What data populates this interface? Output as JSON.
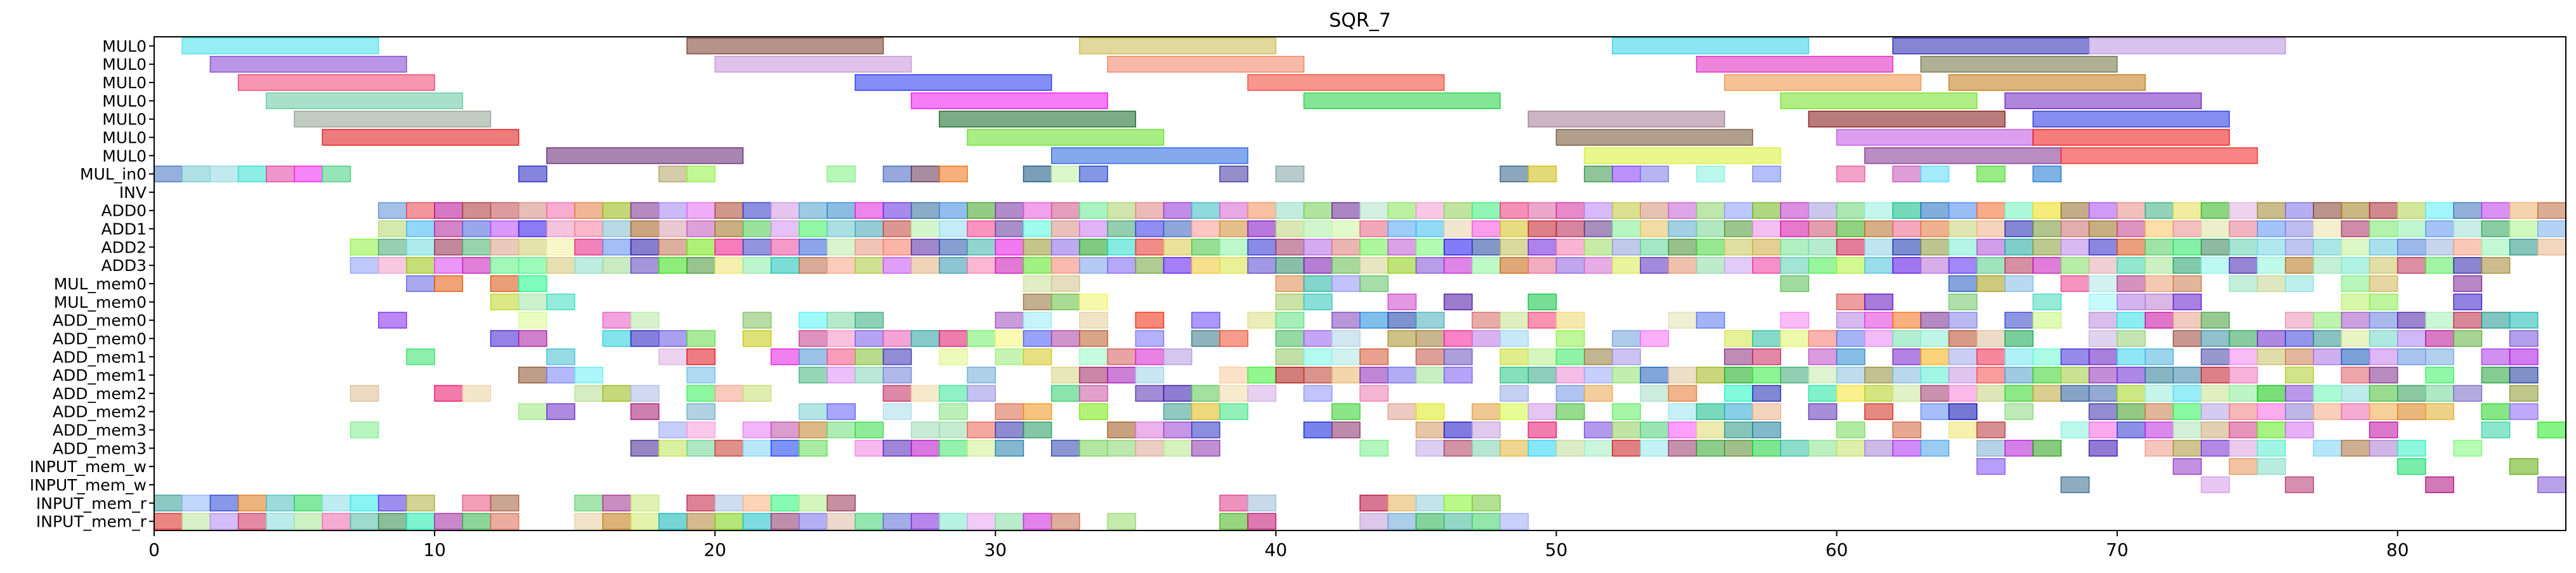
{
  "chart_data": {
    "type": "gantt",
    "title": "SQR_7",
    "xlabel": "",
    "ylabel": "",
    "xlim": [
      0,
      86
    ],
    "x_ticks": [
      0,
      10,
      20,
      30,
      40,
      50,
      60,
      70,
      80
    ],
    "grid": false,
    "rows": [
      "MUL0",
      "MUL0",
      "MUL0",
      "MUL0",
      "MUL0",
      "MUL0",
      "MUL0",
      "MUL_in0",
      "INV",
      "ADD0",
      "ADD1",
      "ADD2",
      "ADD3",
      "MUL_mem0",
      "MUL_mem0",
      "ADD_mem0",
      "ADD_mem0",
      "ADD_mem1",
      "ADD_mem1",
      "ADD_mem2",
      "ADD_mem2",
      "ADD_mem3",
      "ADD_mem3",
      "INPUT_mem_w",
      "INPUT_mem_w",
      "INPUT_mem_r",
      "INPUT_mem_r"
    ],
    "seed": 7,
    "bars": [
      {
        "row": 0,
        "start": 1,
        "end": 8,
        "color": "#40e0e8"
      },
      {
        "row": 0,
        "start": 19,
        "end": 26,
        "color": "#7a3a2a"
      },
      {
        "row": 0,
        "start": 33,
        "end": 40,
        "color": "#c8b848"
      },
      {
        "row": 0,
        "start": 52,
        "end": 59,
        "color": "#30d0e8"
      },
      {
        "row": 0,
        "start": 62,
        "end": 69,
        "color": "#2020b0"
      },
      {
        "row": 0,
        "start": 69,
        "end": 76,
        "color": "#b890e0"
      },
      {
        "row": 1,
        "start": 2,
        "end": 9,
        "color": "#8040d0"
      },
      {
        "row": 1,
        "start": 20,
        "end": 27,
        "color": "#c890d8"
      },
      {
        "row": 1,
        "start": 34,
        "end": 41,
        "color": "#f08060"
      },
      {
        "row": 1,
        "start": 55,
        "end": 62,
        "color": "#e020c0"
      },
      {
        "row": 1,
        "start": 63,
        "end": 70,
        "color": "#707040"
      },
      {
        "row": 2,
        "start": 3,
        "end": 10,
        "color": "#f04070"
      },
      {
        "row": 2,
        "start": 25,
        "end": 32,
        "color": "#2030f0"
      },
      {
        "row": 2,
        "start": 39,
        "end": 46,
        "color": "#f04030"
      },
      {
        "row": 2,
        "start": 56,
        "end": 63,
        "color": "#f09040"
      },
      {
        "row": 2,
        "start": 64,
        "end": 71,
        "color": "#c07810"
      },
      {
        "row": 3,
        "start": 4,
        "end": 11,
        "color": "#60c8a0"
      },
      {
        "row": 3,
        "start": 27,
        "end": 34,
        "color": "#f010f0"
      },
      {
        "row": 3,
        "start": 41,
        "end": 48,
        "color": "#20d040"
      },
      {
        "row": 3,
        "start": 58,
        "end": 65,
        "color": "#70e020"
      },
      {
        "row": 3,
        "start": 66,
        "end": 73,
        "color": "#7020c0"
      },
      {
        "row": 4,
        "start": 5,
        "end": 12,
        "color": "#90a090"
      },
      {
        "row": 4,
        "start": 28,
        "end": 35,
        "color": "#106820"
      },
      {
        "row": 4,
        "start": 49,
        "end": 56,
        "color": "#a07890"
      },
      {
        "row": 4,
        "start": 59,
        "end": 66,
        "color": "#801010"
      },
      {
        "row": 4,
        "start": 67,
        "end": 74,
        "color": "#2030e0"
      },
      {
        "row": 5,
        "start": 6,
        "end": 13,
        "color": "#e01010"
      },
      {
        "row": 5,
        "start": 29,
        "end": 36,
        "color": "#60e020"
      },
      {
        "row": 5,
        "start": 50,
        "end": 57,
        "color": "#705030"
      },
      {
        "row": 5,
        "start": 60,
        "end": 67,
        "color": "#c050e0"
      },
      {
        "row": 5,
        "start": 67,
        "end": 74,
        "color": "#f01010"
      },
      {
        "row": 6,
        "start": 14,
        "end": 21,
        "color": "#602070"
      },
      {
        "row": 6,
        "start": 32,
        "end": 39,
        "color": "#2060e0"
      },
      {
        "row": 6,
        "start": 51,
        "end": 58,
        "color": "#d8f030"
      },
      {
        "row": 6,
        "start": 61,
        "end": 68,
        "color": "#803090"
      },
      {
        "row": 6,
        "start": 68,
        "end": 75,
        "color": "#f02020"
      },
      {
        "row": 7,
        "start": 0,
        "end": 1,
        "color": "#4070c0"
      },
      {
        "row": 7,
        "start": 1,
        "end": 2,
        "color": "#70c8d0"
      },
      {
        "row": 7,
        "start": 2,
        "end": 3,
        "color": "#90d8e0"
      },
      {
        "row": 7,
        "start": 3,
        "end": 4,
        "color": "#30e0d0"
      },
      {
        "row": 7,
        "start": 4,
        "end": 5,
        "color": "#e040a0"
      },
      {
        "row": 7,
        "start": 5,
        "end": 6,
        "color": "#f020f0"
      },
      {
        "row": 7,
        "start": 6,
        "end": 7,
        "color": "#40d080"
      },
      {
        "row": 7,
        "start": 13,
        "end": 14,
        "color": "#2020c0"
      },
      {
        "row": 7,
        "start": 18,
        "end": 19,
        "color": "#b0a060"
      },
      {
        "row": 7,
        "start": 19,
        "end": 20,
        "color": "#90f040"
      },
      {
        "row": 7,
        "start": 24,
        "end": 25,
        "color": "#80f080"
      },
      {
        "row": 7,
        "start": 26,
        "end": 27,
        "color": "#4060c0"
      },
      {
        "row": 7,
        "start": 27,
        "end": 28,
        "color": "#603050"
      },
      {
        "row": 7,
        "start": 28,
        "end": 29,
        "color": "#f07010"
      },
      {
        "row": 7,
        "start": 31,
        "end": 32,
        "color": "#105080"
      },
      {
        "row": 7,
        "start": 32,
        "end": 33,
        "color": "#c0f0a0"
      },
      {
        "row": 7,
        "start": 33,
        "end": 34,
        "color": "#2040d0"
      },
      {
        "row": 7,
        "start": 38,
        "end": 39,
        "color": "#4030a0"
      },
      {
        "row": 7,
        "start": 40,
        "end": 41,
        "color": "#80a0a0"
      },
      {
        "row": 9,
        "start": 8,
        "end": 86,
        "color": "mix"
      },
      {
        "row": 10,
        "start": 8,
        "end": 86,
        "color": "mix"
      },
      {
        "row": 11,
        "start": 7,
        "end": 86,
        "color": "mix"
      },
      {
        "row": 12,
        "start": 7,
        "end": 84,
        "color": "mix"
      }
    ],
    "dense_rows": [
      {
        "row": 7,
        "ranges": [
          [
            48,
            69
          ]
        ],
        "density": 0.75
      },
      {
        "row": 13,
        "ranges": [
          [
            9,
            15
          ],
          [
            31,
            33
          ],
          [
            39,
            44
          ],
          [
            57,
            60
          ],
          [
            62,
            83
          ]
        ],
        "density": 0.6
      },
      {
        "row": 14,
        "ranges": [
          [
            9,
            15
          ],
          [
            27,
            29
          ],
          [
            31,
            34
          ],
          [
            40,
            50
          ],
          [
            57,
            83
          ]
        ],
        "density": 0.55
      },
      {
        "row": 15,
        "ranges": [
          [
            8,
            9
          ],
          [
            13,
            14
          ],
          [
            16,
            20
          ],
          [
            21,
            26
          ],
          [
            27,
            28
          ],
          [
            30,
            52
          ],
          [
            54,
            85
          ]
        ],
        "density": 0.75
      },
      {
        "row": 16,
        "ranges": [
          [
            11,
            14
          ],
          [
            16,
            20
          ],
          [
            21,
            49
          ],
          [
            50,
            85
          ]
        ],
        "density": 0.8
      },
      {
        "row": 17,
        "ranges": [
          [
            9,
            10
          ],
          [
            14,
            16
          ],
          [
            17,
            20
          ],
          [
            22,
            32
          ],
          [
            33,
            38
          ],
          [
            40,
            47
          ],
          [
            48,
            86
          ]
        ],
        "density": 0.75
      },
      {
        "row": 18,
        "ranges": [
          [
            13,
            16
          ],
          [
            19,
            20
          ],
          [
            23,
            30
          ],
          [
            32,
            36
          ],
          [
            38,
            47
          ],
          [
            48,
            85
          ]
        ],
        "density": 0.8
      },
      {
        "row": 19,
        "ranges": [
          [
            7,
            8
          ],
          [
            10,
            12
          ],
          [
            14,
            18
          ],
          [
            19,
            23
          ],
          [
            24,
            40
          ],
          [
            41,
            45
          ],
          [
            48,
            86
          ]
        ],
        "density": 0.8
      },
      {
        "row": 20,
        "ranges": [
          [
            8,
            9
          ],
          [
            13,
            15
          ],
          [
            16,
            18
          ],
          [
            19,
            21
          ],
          [
            23,
            34
          ],
          [
            36,
            40
          ],
          [
            42,
            46
          ],
          [
            47,
            85
          ]
        ],
        "density": 0.75
      },
      {
        "row": 21,
        "ranges": [
          [
            7,
            8
          ],
          [
            18,
            20
          ],
          [
            21,
            38
          ],
          [
            41,
            43
          ],
          [
            44,
            86
          ]
        ],
        "density": 0.8
      },
      {
        "row": 22,
        "ranges": [
          [
            9,
            10
          ],
          [
            16,
            24
          ],
          [
            25,
            39
          ],
          [
            43,
            85
          ]
        ],
        "density": 0.8
      },
      {
        "row": 23,
        "ranges": [
          [
            65,
            66
          ],
          [
            72,
            73
          ],
          [
            74,
            76
          ],
          [
            80,
            81
          ],
          [
            84,
            85
          ]
        ],
        "density": 1.0
      },
      {
        "row": 24,
        "ranges": [
          [
            68,
            69
          ],
          [
            73,
            74
          ],
          [
            76,
            77
          ],
          [
            81,
            82
          ],
          [
            85,
            86
          ]
        ],
        "density": 1.0
      },
      {
        "row": 25,
        "ranges": [
          [
            0,
            13
          ],
          [
            15,
            26
          ],
          [
            38,
            40
          ],
          [
            43,
            48
          ]
        ],
        "density": 0.95
      },
      {
        "row": 26,
        "ranges": [
          [
            0,
            13
          ],
          [
            15,
            36
          ],
          [
            38,
            40
          ],
          [
            43,
            49
          ]
        ],
        "density": 0.95
      }
    ]
  }
}
